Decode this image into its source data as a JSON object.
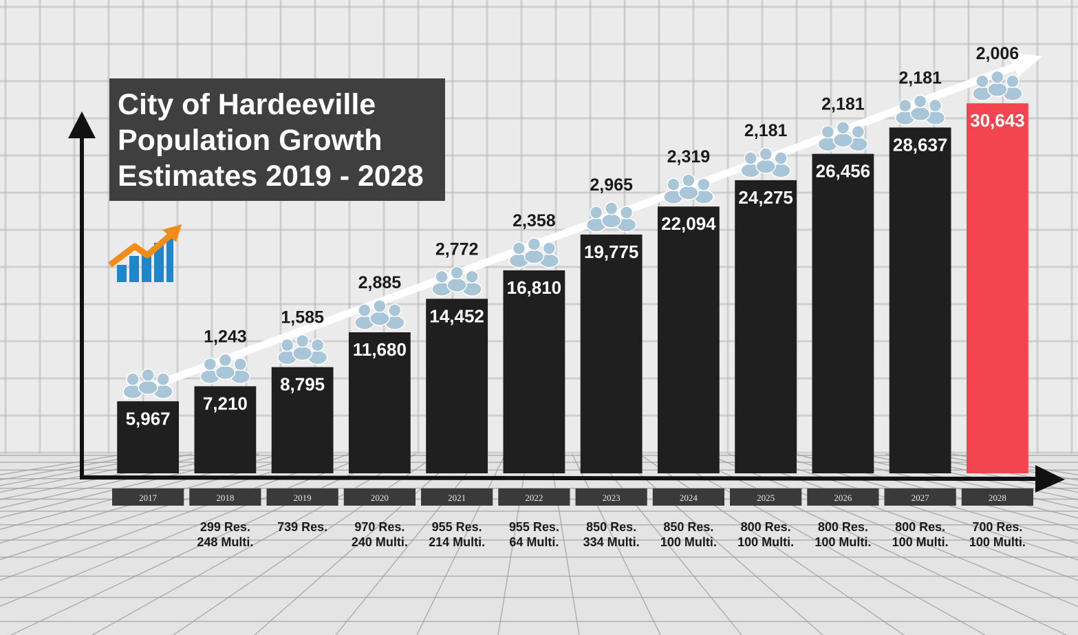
{
  "chart_data": {
    "type": "bar",
    "title": [
      "City of Hardeeville",
      "Population Growth",
      "Estimates 2019 - 2028"
    ],
    "categories": [
      "2017",
      "2018",
      "2019",
      "2020",
      "2021",
      "2022",
      "2023",
      "2024",
      "2025",
      "2026",
      "2027",
      "2028"
    ],
    "series": [
      {
        "values": [
          5967,
          7210,
          8795,
          11680,
          14452,
          16810,
          19775,
          22094,
          24275,
          26456,
          28637,
          30643
        ],
        "value_labels": [
          "5,967",
          "7,210",
          "8,795",
          "11,680",
          "14,452",
          "16,810",
          "19,775",
          "22,094",
          "24,275",
          "26,456",
          "28,637",
          "30,643"
        ]
      }
    ],
    "increase_labels": [
      "",
      "1,243",
      "1,585",
      "2,885",
      "2,772",
      "2,358",
      "2,965",
      "2,319",
      "2,181",
      "2,181",
      "2,181",
      "2,006"
    ],
    "permit_notes": [
      [
        "",
        ""
      ],
      [
        "299 Res.",
        "248 Multi."
      ],
      [
        "739 Res.",
        ""
      ],
      [
        "970 Res.",
        "240 Multi."
      ],
      [
        "955 Res.",
        "214 Multi."
      ],
      [
        "955 Res.",
        "64 Multi."
      ],
      [
        "850 Res.",
        "334 Multi."
      ],
      [
        "850 Res.",
        "100 Multi."
      ],
      [
        "800 Res.",
        "100 Multi."
      ],
      [
        "800 Res.",
        "100 Multi."
      ],
      [
        "800 Res.",
        "100 Multi."
      ],
      [
        "700 Res.",
        "100 Multi."
      ]
    ],
    "highlight_category": "2028",
    "grid": true,
    "trend_arrow": true
  },
  "colors": {
    "bar": "#1f1f1f",
    "bar_highlight": "#f2454f",
    "background": "#ebebeb",
    "grid": "#b9b9b9",
    "title_box": "#3f3f3f",
    "year_box": "#3a3a3a",
    "people_icon": "#a9c6d9",
    "trend_icon_bars": "#1f86c9",
    "trend_icon_arrow": "#f28c18"
  },
  "icons": {
    "people": "people-group-icon",
    "trend": "growth-chart-icon"
  }
}
